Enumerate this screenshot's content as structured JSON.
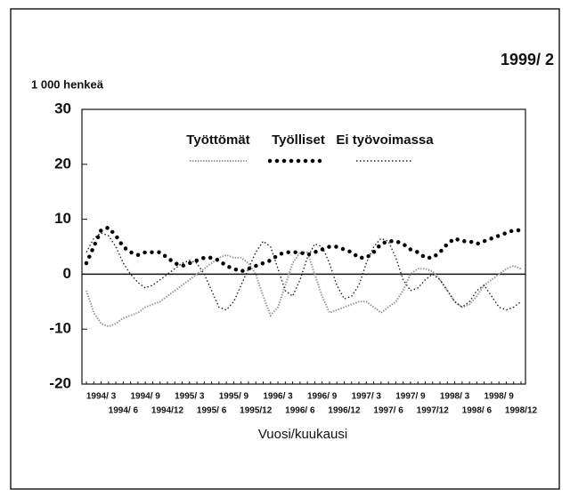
{
  "chart_data": {
    "type": "line",
    "title": "1999/ 2",
    "y_label": "1 000 henkeä",
    "x_label": "Vuosi/kuukausi",
    "categories": [
      null,
      null,
      "1994/ 3",
      null,
      null,
      "1994/ 6",
      null,
      null,
      "1994/ 9",
      null,
      null,
      "1994/12",
      null,
      null,
      "1995/ 3",
      null,
      null,
      "1995/ 6",
      null,
      null,
      "1995/ 9",
      null,
      null,
      "1995/12",
      null,
      null,
      "1996/ 3",
      null,
      null,
      "1996/ 6",
      null,
      null,
      "1996/ 9",
      null,
      null,
      "1996/12",
      null,
      null,
      "1997/ 3",
      null,
      null,
      "1997/ 6",
      null,
      null,
      "1997/ 9",
      null,
      null,
      "1997/12",
      null,
      null,
      "1998/ 3",
      null,
      null,
      "1998/ 6",
      null,
      null,
      "1998/ 9",
      null,
      null,
      "1998/12"
    ],
    "series": [
      {
        "name": "Työttömät",
        "color": "#9a9a9a",
        "values": [
          -3,
          -7,
          -9,
          -9.5,
          -9,
          -8,
          -7.5,
          -7,
          -6,
          -5.5,
          -5,
          -4,
          -3,
          -2,
          -1,
          0,
          1,
          2,
          3,
          3.5,
          3,
          3,
          2,
          0,
          -4,
          -7.5,
          -6,
          -2,
          2,
          4,
          4,
          0,
          -4,
          -7,
          -6.5,
          -6,
          -5.5,
          -5,
          -5,
          -6,
          -7,
          -6,
          -5,
          -3,
          0,
          1,
          1,
          0.5,
          -1,
          -3,
          -5,
          -6,
          -5.5,
          -4,
          -2,
          -1,
          0,
          1,
          1.5,
          1
        ]
      },
      {
        "name": "Työlliset",
        "color": "#000000",
        "values": [
          2,
          5,
          8,
          8.5,
          7,
          5,
          4,
          3.5,
          4,
          4,
          4,
          3,
          2,
          1.5,
          2,
          2.5,
          3,
          3,
          2.5,
          1.5,
          1,
          0.5,
          1,
          1.5,
          2,
          2.5,
          3.5,
          4,
          4,
          4,
          3.5,
          4,
          4.5,
          5,
          5,
          4.5,
          4,
          3,
          3,
          4,
          5.5,
          6,
          6,
          5.5,
          4.5,
          4,
          3,
          3,
          4,
          5.5,
          6.5,
          6,
          6,
          5.5,
          6,
          6.5,
          7,
          7.5,
          8,
          8
        ]
      },
      {
        "name": "Ei työvoimassa",
        "color": "#222222",
        "values": [
          4,
          6.5,
          7.5,
          7,
          5,
          2,
          0,
          -1.5,
          -2.5,
          -2,
          -1,
          0,
          1,
          2,
          2.5,
          2,
          0,
          -3,
          -6,
          -6.5,
          -5,
          -2,
          1,
          4,
          6,
          5,
          1,
          -3,
          -4,
          -1,
          3,
          5.5,
          5,
          2,
          -2,
          -4.5,
          -4,
          -2,
          2,
          5,
          6.5,
          6,
          3,
          -1,
          -3,
          -2.5,
          -1,
          0,
          -1,
          -3,
          -5,
          -6,
          -5,
          -3,
          -2,
          -4,
          -6,
          -6.5,
          -6,
          -5
        ]
      }
    ],
    "ylim": [
      -20,
      30
    ],
    "yticks": [
      30,
      20,
      10,
      0,
      -10,
      -20
    ],
    "zero_line": true
  }
}
